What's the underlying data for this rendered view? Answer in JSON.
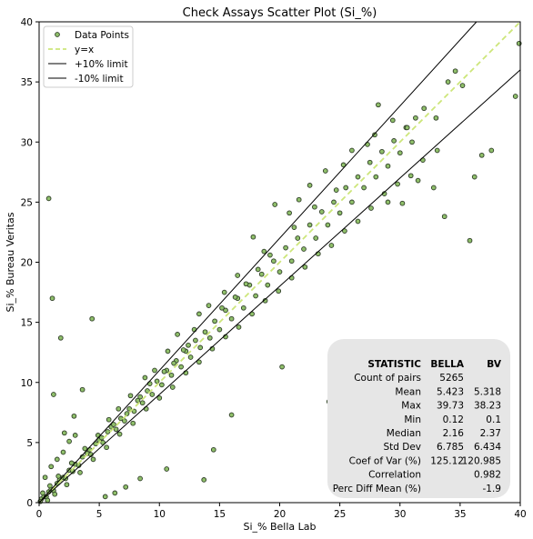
{
  "chart_data": {
    "type": "scatter",
    "title": "Check Assays Scatter Plot (Si_%)",
    "xlabel": "Si_% Bella Lab",
    "ylabel": "Si_% Bureau Veritas",
    "xlim": [
      0,
      40
    ],
    "ylim": [
      0,
      40
    ],
    "xticks": [
      "0",
      "5",
      "10",
      "15",
      "20",
      "25",
      "30",
      "35",
      "40"
    ],
    "yticks": [
      "0",
      "5",
      "10",
      "15",
      "20",
      "25",
      "30",
      "35",
      "40"
    ],
    "grid": false,
    "legend_position": "top-left",
    "legend": [
      {
        "label": "Data Points",
        "kind": "marker"
      },
      {
        "label": "y=x",
        "kind": "dashed-line"
      },
      {
        "label": "+10% limit",
        "kind": "line"
      },
      {
        "label": "-10% limit",
        "kind": "line"
      }
    ],
    "series": [
      {
        "name": "Data Points",
        "role": "scatter",
        "color": "#8fbf6a",
        "edge_color": "#2f3d28"
      },
      {
        "name": "y=x",
        "role": "reference",
        "slope": 1.0,
        "color": "#cde67a"
      },
      {
        "name": "+10% limit",
        "role": "limit",
        "slope": 1.1,
        "color": "#000000"
      },
      {
        "name": "-10% limit",
        "role": "limit",
        "slope": 0.9,
        "color": "#000000"
      }
    ],
    "points": [
      [
        0.2,
        0.3
      ],
      [
        0.4,
        0.5
      ],
      [
        0.6,
        0.5
      ],
      [
        0.8,
        0.9
      ],
      [
        1.0,
        1.1
      ],
      [
        1.2,
        1.0
      ],
      [
        1.5,
        1.6
      ],
      [
        1.7,
        1.9
      ],
      [
        2.0,
        2.1
      ],
      [
        2.2,
        2.0
      ],
      [
        2.5,
        2.7
      ],
      [
        2.8,
        2.6
      ],
      [
        3.0,
        3.2
      ],
      [
        3.3,
        3.1
      ],
      [
        3.6,
        3.8
      ],
      [
        4.0,
        4.1
      ],
      [
        4.3,
        4.0
      ],
      [
        4.7,
        4.9
      ],
      [
        5.0,
        5.2
      ],
      [
        5.3,
        5.0
      ],
      [
        5.7,
        5.9
      ],
      [
        6.0,
        6.3
      ],
      [
        6.4,
        6.1
      ],
      [
        6.8,
        7.0
      ],
      [
        7.1,
        6.8
      ],
      [
        7.5,
        7.8
      ],
      [
        7.9,
        7.6
      ],
      [
        8.2,
        8.5
      ],
      [
        8.6,
        8.3
      ],
      [
        9.0,
        9.3
      ],
      [
        9.4,
        9.0
      ],
      [
        9.8,
        10.1
      ],
      [
        10.2,
        9.8
      ],
      [
        10.6,
        11.0
      ],
      [
        11.0,
        10.6
      ],
      [
        11.4,
        11.8
      ],
      [
        11.8,
        11.3
      ],
      [
        12.2,
        12.6
      ],
      [
        12.6,
        12.1
      ],
      [
        13.0,
        13.5
      ],
      [
        13.4,
        12.9
      ],
      [
        13.8,
        14.2
      ],
      [
        14.2,
        13.7
      ],
      [
        14.6,
        15.1
      ],
      [
        15.0,
        14.4
      ],
      [
        15.5,
        16.0
      ],
      [
        16.0,
        15.3
      ],
      [
        16.5,
        17.0
      ],
      [
        17.0,
        16.2
      ],
      [
        17.5,
        18.1
      ],
      [
        18.0,
        17.2
      ],
      [
        18.5,
        19.0
      ],
      [
        19.0,
        18.1
      ],
      [
        19.5,
        20.1
      ],
      [
        20.0,
        19.2
      ],
      [
        20.5,
        21.2
      ],
      [
        21.0,
        20.1
      ],
      [
        21.5,
        22.0
      ],
      [
        22.0,
        21.1
      ],
      [
        22.5,
        23.1
      ],
      [
        23.0,
        22.0
      ],
      [
        23.5,
        24.2
      ],
      [
        24.0,
        23.1
      ],
      [
        24.5,
        25.0
      ],
      [
        25.0,
        24.1
      ],
      [
        25.5,
        26.2
      ],
      [
        26.0,
        25.0
      ],
      [
        26.5,
        27.1
      ],
      [
        27.0,
        26.2
      ],
      [
        27.5,
        28.3
      ],
      [
        28.0,
        27.1
      ],
      [
        28.5,
        29.2
      ],
      [
        29.0,
        28.0
      ],
      [
        29.5,
        30.1
      ],
      [
        30.0,
        29.1
      ],
      [
        30.5,
        31.2
      ],
      [
        31.0,
        30.0
      ],
      [
        32.0,
        32.8
      ],
      [
        33.0,
        32.0
      ],
      [
        34.0,
        35.0
      ],
      [
        0.5,
        2.1
      ],
      [
        1.0,
        3.0
      ],
      [
        1.5,
        3.6
      ],
      [
        2.0,
        4.2
      ],
      [
        2.5,
        5.1
      ],
      [
        3.0,
        5.6
      ],
      [
        1.2,
        9.0
      ],
      [
        1.1,
        17.0
      ],
      [
        0.8,
        25.3
      ],
      [
        1.8,
        13.7
      ],
      [
        4.4,
        15.3
      ],
      [
        2.9,
        7.2
      ],
      [
        3.6,
        9.4
      ],
      [
        2.1,
        5.8
      ],
      [
        5.5,
        0.5
      ],
      [
        6.3,
        0.8
      ],
      [
        7.2,
        1.3
      ],
      [
        8.4,
        2.0
      ],
      [
        10.6,
        2.8
      ],
      [
        13.7,
        1.9
      ],
      [
        14.5,
        4.4
      ],
      [
        16.0,
        7.3
      ],
      [
        20.2,
        11.3
      ],
      [
        24.1,
        8.4
      ],
      [
        35.8,
        21.8
      ],
      [
        39.6,
        33.8
      ],
      [
        39.9,
        38.2
      ],
      [
        36.8,
        28.9
      ],
      [
        37.6,
        29.3
      ],
      [
        36.2,
        27.1
      ],
      [
        33.7,
        23.8
      ],
      [
        32.8,
        26.2
      ],
      [
        31.5,
        26.8
      ],
      [
        30.2,
        24.9
      ],
      [
        29.0,
        25.0
      ],
      [
        34.6,
        35.9
      ],
      [
        35.2,
        34.7
      ],
      [
        28.2,
        33.1
      ],
      [
        27.3,
        29.8
      ],
      [
        26.0,
        29.3
      ],
      [
        24.7,
        26.0
      ],
      [
        23.8,
        27.6
      ],
      [
        22.5,
        26.4
      ],
      [
        21.6,
        25.2
      ],
      [
        20.8,
        24.1
      ],
      [
        19.6,
        24.8
      ],
      [
        18.7,
        20.9
      ],
      [
        17.8,
        22.1
      ],
      [
        16.5,
        18.9
      ],
      [
        15.4,
        17.5
      ],
      [
        14.1,
        16.4
      ],
      [
        13.3,
        15.7
      ],
      [
        12.4,
        13.1
      ],
      [
        11.5,
        14.0
      ],
      [
        10.7,
        12.6
      ],
      [
        9.6,
        11.0
      ],
      [
        8.8,
        10.4
      ],
      [
        7.6,
        8.9
      ],
      [
        6.6,
        7.8
      ],
      [
        5.8,
        6.9
      ],
      [
        4.9,
        5.6
      ],
      [
        3.8,
        4.5
      ],
      [
        2.7,
        3.3
      ],
      [
        1.6,
        2.2
      ],
      [
        0.9,
        1.4
      ],
      [
        0.3,
        0.8
      ],
      [
        0.1,
        0.1
      ],
      [
        0.7,
        0.2
      ],
      [
        1.3,
        0.7
      ],
      [
        2.3,
        1.5
      ],
      [
        3.4,
        2.5
      ],
      [
        4.5,
        3.6
      ],
      [
        5.6,
        4.6
      ],
      [
        6.7,
        5.7
      ],
      [
        7.8,
        6.6
      ],
      [
        8.9,
        7.8
      ],
      [
        10.0,
        8.7
      ],
      [
        11.1,
        9.6
      ],
      [
        12.2,
        10.8
      ],
      [
        13.3,
        11.7
      ],
      [
        14.4,
        12.8
      ],
      [
        15.5,
        13.8
      ],
      [
        16.6,
        14.6
      ],
      [
        17.7,
        15.7
      ],
      [
        18.8,
        16.8
      ],
      [
        19.9,
        17.6
      ],
      [
        21.0,
        18.7
      ],
      [
        22.1,
        19.6
      ],
      [
        23.2,
        20.7
      ],
      [
        24.3,
        21.4
      ],
      [
        25.4,
        22.6
      ],
      [
        26.5,
        23.4
      ],
      [
        27.6,
        24.5
      ],
      [
        28.7,
        25.7
      ],
      [
        29.8,
        26.5
      ],
      [
        30.9,
        27.2
      ],
      [
        31.9,
        28.5
      ],
      [
        33.1,
        29.3
      ],
      [
        25.3,
        28.1
      ],
      [
        27.9,
        30.6
      ],
      [
        29.4,
        31.8
      ],
      [
        30.6,
        31.2
      ],
      [
        31.3,
        32.0
      ],
      [
        22.9,
        24.6
      ],
      [
        21.2,
        22.9
      ],
      [
        19.2,
        20.6
      ],
      [
        18.2,
        19.4
      ],
      [
        17.2,
        18.2
      ],
      [
        16.3,
        17.1
      ],
      [
        15.2,
        16.2
      ],
      [
        12.9,
        14.4
      ],
      [
        12.0,
        12.7
      ],
      [
        11.2,
        11.6
      ],
      [
        10.4,
        10.9
      ],
      [
        9.2,
        9.9
      ],
      [
        8.4,
        8.8
      ],
      [
        7.3,
        7.4
      ],
      [
        6.2,
        6.5
      ],
      [
        5.2,
        5.4
      ],
      [
        4.2,
        4.4
      ]
    ],
    "stats_table": {
      "headers": [
        "STATISTIC",
        "BELLA",
        "BV"
      ],
      "rows": [
        [
          "Count of pairs",
          "5265",
          ""
        ],
        [
          "Mean",
          "5.423",
          "5.318"
        ],
        [
          "Max",
          "39.73",
          "38.23"
        ],
        [
          "Min",
          "0.12",
          "0.1"
        ],
        [
          "Median",
          "2.16",
          "2.37"
        ],
        [
          "Std Dev",
          "6.785",
          "6.434"
        ],
        [
          "Coef of Var (%)",
          "125.12",
          "120.985"
        ],
        [
          "Correlation",
          "",
          "0.982"
        ],
        [
          "Perc Diff Mean (%)",
          "",
          "-1.9"
        ]
      ]
    }
  }
}
